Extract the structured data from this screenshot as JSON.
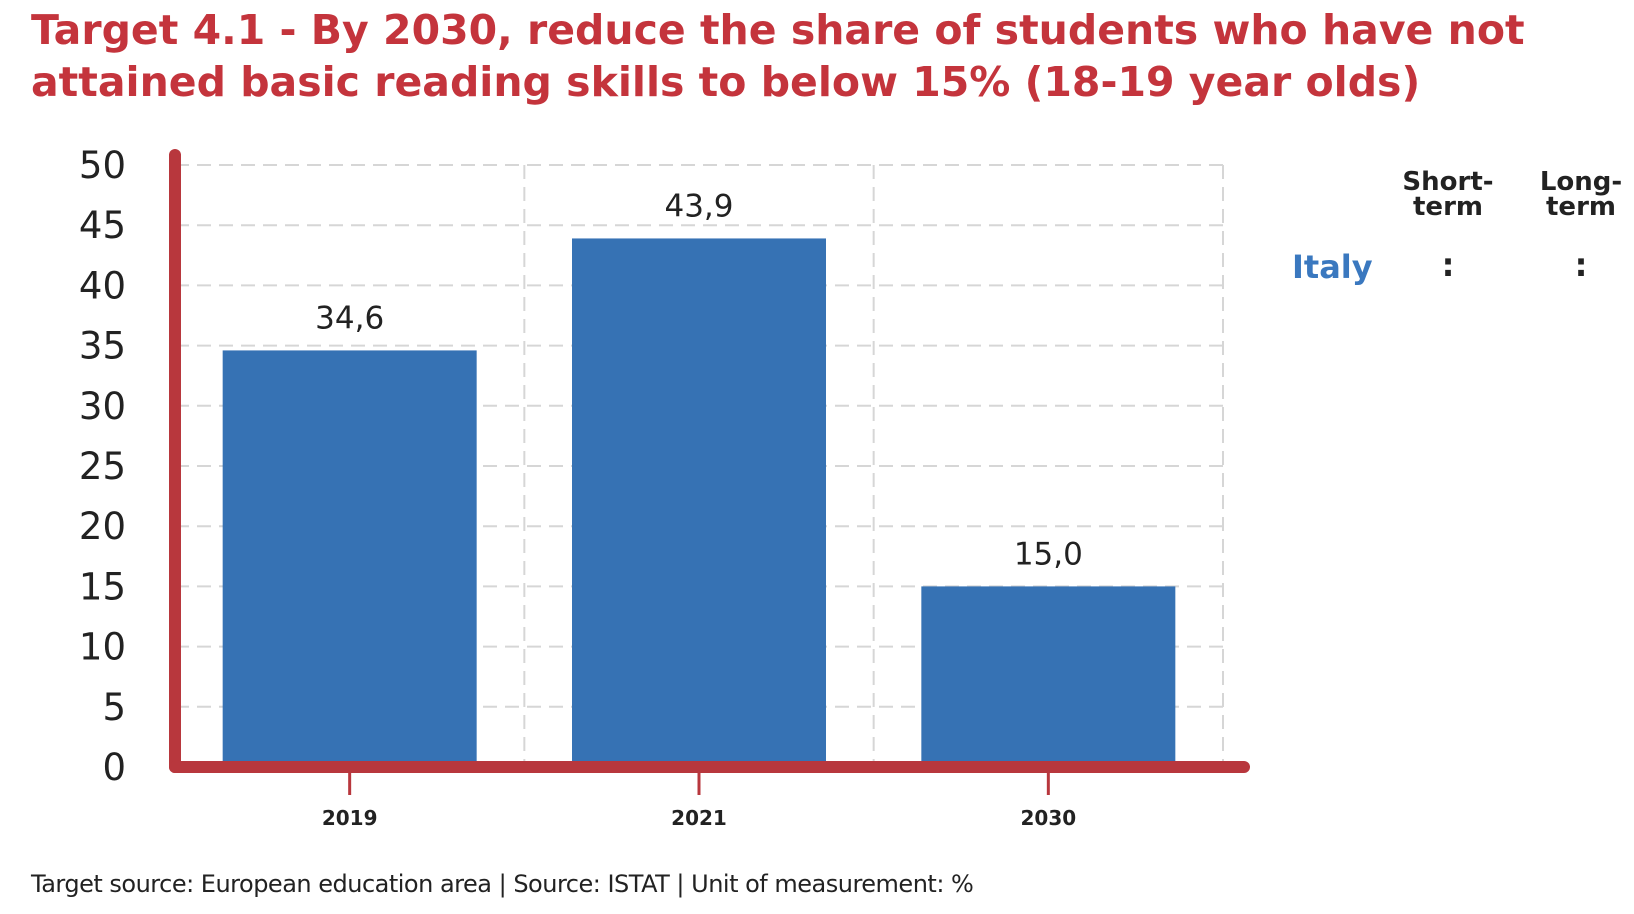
{
  "title": "Target 4.1 - By 2030, reduce the share of students who have not attained basic reading skills to below 15% (18-19 year olds)",
  "footer": "Target source: European education area | Source: ISTAT | Unit of measurement: %",
  "side_table": {
    "headers": [
      "Short-\nterm",
      "Long-\nterm"
    ],
    "header_short_line1": "Short-",
    "header_short_line2": "term",
    "header_long_line1": "Long-",
    "header_long_line2": "term",
    "row_label": "Italy",
    "short_term": ":",
    "long_term": ":"
  },
  "colors": {
    "bar": "#3672b4",
    "axis": "#b8373d",
    "title": "#c4343c",
    "italy": "#3a78bf"
  },
  "chart_data": {
    "type": "bar",
    "categories": [
      "2019",
      "2021",
      "2030"
    ],
    "values": [
      34.6,
      43.9,
      15.0
    ],
    "data_labels": [
      "34,6",
      "43,9",
      "15,0"
    ],
    "ylim": [
      0,
      50
    ],
    "yticks": [
      "0",
      "5",
      "10",
      "15",
      "20",
      "25",
      "30",
      "35",
      "40",
      "45",
      "50"
    ],
    "xlabel": "",
    "ylabel": "",
    "grid": true,
    "legend": "none"
  }
}
